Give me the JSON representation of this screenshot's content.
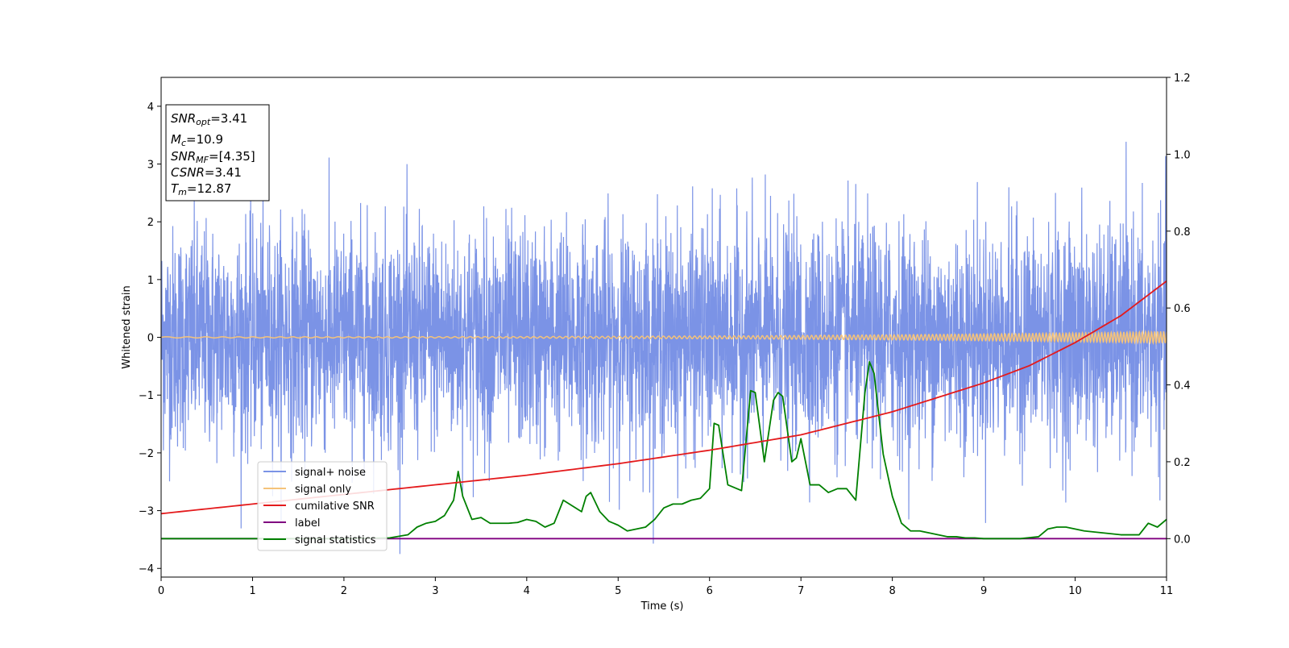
{
  "chart_data": {
    "type": "line",
    "xlabel": "Time (s)",
    "ylabel": "Whitened strain",
    "xlim": [
      0,
      11
    ],
    "ylim": [
      -4.15,
      4.5
    ],
    "ylim_right": [
      -0.1,
      1.2
    ],
    "x_ticks": [
      "0",
      "1",
      "2",
      "3",
      "4",
      "5",
      "6",
      "7",
      "8",
      "9",
      "10",
      "11"
    ],
    "y_ticks": [
      "−4",
      "−3",
      "−2",
      "−1",
      "0",
      "1",
      "2",
      "3",
      "4"
    ],
    "y_ticks_right": [
      "0.0",
      "0.2",
      "0.4",
      "0.6",
      "0.8",
      "1.0",
      "1.2"
    ],
    "legend_position": "lower-left",
    "info_box": {
      "snr_opt": {
        "label": "SNR",
        "sub": "opt",
        "value": "=3.41"
      },
      "mc": {
        "label": "M",
        "sub": "c",
        "value": "=10.9"
      },
      "snr_mf": {
        "label": "SNR",
        "sub": "MF",
        "value": "=[4.35]"
      },
      "csnr": {
        "label": "CSNR",
        "sub": "",
        "value": "=3.41"
      },
      "tm": {
        "label": "T",
        "sub": "m",
        "value": "=12.87"
      }
    },
    "series": [
      {
        "key": "noise",
        "name": "signal+ noise",
        "color": "#7b93e6",
        "axis": "left",
        "description": "whitened noisy strain, roughly ±2 with spikes up to ±4"
      },
      {
        "key": "signal",
        "name": "signal only",
        "color": "#f5c37a",
        "axis": "left",
        "description": "chirp, amplitude growing from ~0 to ~0.1"
      },
      {
        "key": "csnr",
        "name": "cumilative SNR",
        "color": "#e41a1c",
        "axis": "right",
        "x": [
          0,
          1,
          2,
          3,
          4,
          5,
          6,
          7,
          8,
          9,
          9.5,
          10,
          10.5,
          11
        ],
        "values": [
          0.065,
          0.09,
          0.115,
          0.14,
          0.165,
          0.195,
          0.23,
          0.27,
          0.33,
          0.405,
          0.45,
          0.51,
          0.58,
          0.67
        ]
      },
      {
        "key": "label",
        "name": "label",
        "color": "#800080",
        "axis": "right",
        "x": [
          0,
          11
        ],
        "values": [
          0,
          0
        ]
      },
      {
        "key": "stat",
        "name": "signal statistics",
        "color": "#008000",
        "axis": "right",
        "x": [
          0,
          0.5,
          1,
          1.5,
          2,
          2.5,
          2.7,
          2.8,
          2.9,
          3.0,
          3.1,
          3.2,
          3.25,
          3.3,
          3.4,
          3.5,
          3.6,
          3.7,
          3.8,
          3.9,
          4.0,
          4.1,
          4.2,
          4.3,
          4.4,
          4.5,
          4.6,
          4.65,
          4.7,
          4.8,
          4.9,
          5.0,
          5.1,
          5.2,
          5.3,
          5.4,
          5.5,
          5.6,
          5.7,
          5.8,
          5.9,
          6.0,
          6.05,
          6.1,
          6.2,
          6.3,
          6.35,
          6.45,
          6.5,
          6.6,
          6.7,
          6.75,
          6.8,
          6.9,
          6.95,
          7.0,
          7.1,
          7.2,
          7.3,
          7.4,
          7.5,
          7.6,
          7.7,
          7.75,
          7.8,
          7.9,
          8.0,
          8.1,
          8.2,
          8.3,
          8.4,
          8.5,
          8.6,
          8.7,
          8.8,
          8.9,
          9.0,
          9.2,
          9.4,
          9.6,
          9.7,
          9.8,
          9.9,
          10.0,
          10.1,
          10.3,
          10.5,
          10.7,
          10.8,
          10.9,
          11.0
        ],
        "values": [
          0,
          0,
          0,
          0,
          0,
          0.002,
          0.01,
          0.03,
          0.04,
          0.045,
          0.06,
          0.1,
          0.175,
          0.11,
          0.05,
          0.055,
          0.04,
          0.04,
          0.04,
          0.042,
          0.05,
          0.045,
          0.03,
          0.04,
          0.1,
          0.085,
          0.07,
          0.11,
          0.12,
          0.07,
          0.045,
          0.035,
          0.02,
          0.025,
          0.03,
          0.05,
          0.08,
          0.09,
          0.09,
          0.1,
          0.105,
          0.13,
          0.3,
          0.295,
          0.14,
          0.13,
          0.125,
          0.385,
          0.38,
          0.2,
          0.36,
          0.38,
          0.37,
          0.2,
          0.21,
          0.26,
          0.14,
          0.14,
          0.12,
          0.13,
          0.13,
          0.1,
          0.38,
          0.46,
          0.43,
          0.22,
          0.11,
          0.04,
          0.02,
          0.02,
          0.015,
          0.01,
          0.005,
          0.005,
          0.002,
          0.002,
          0,
          0,
          0,
          0.005,
          0.025,
          0.03,
          0.03,
          0.025,
          0.02,
          0.015,
          0.01,
          0.01,
          0.04,
          0.03,
          0.05
        ]
      }
    ]
  }
}
